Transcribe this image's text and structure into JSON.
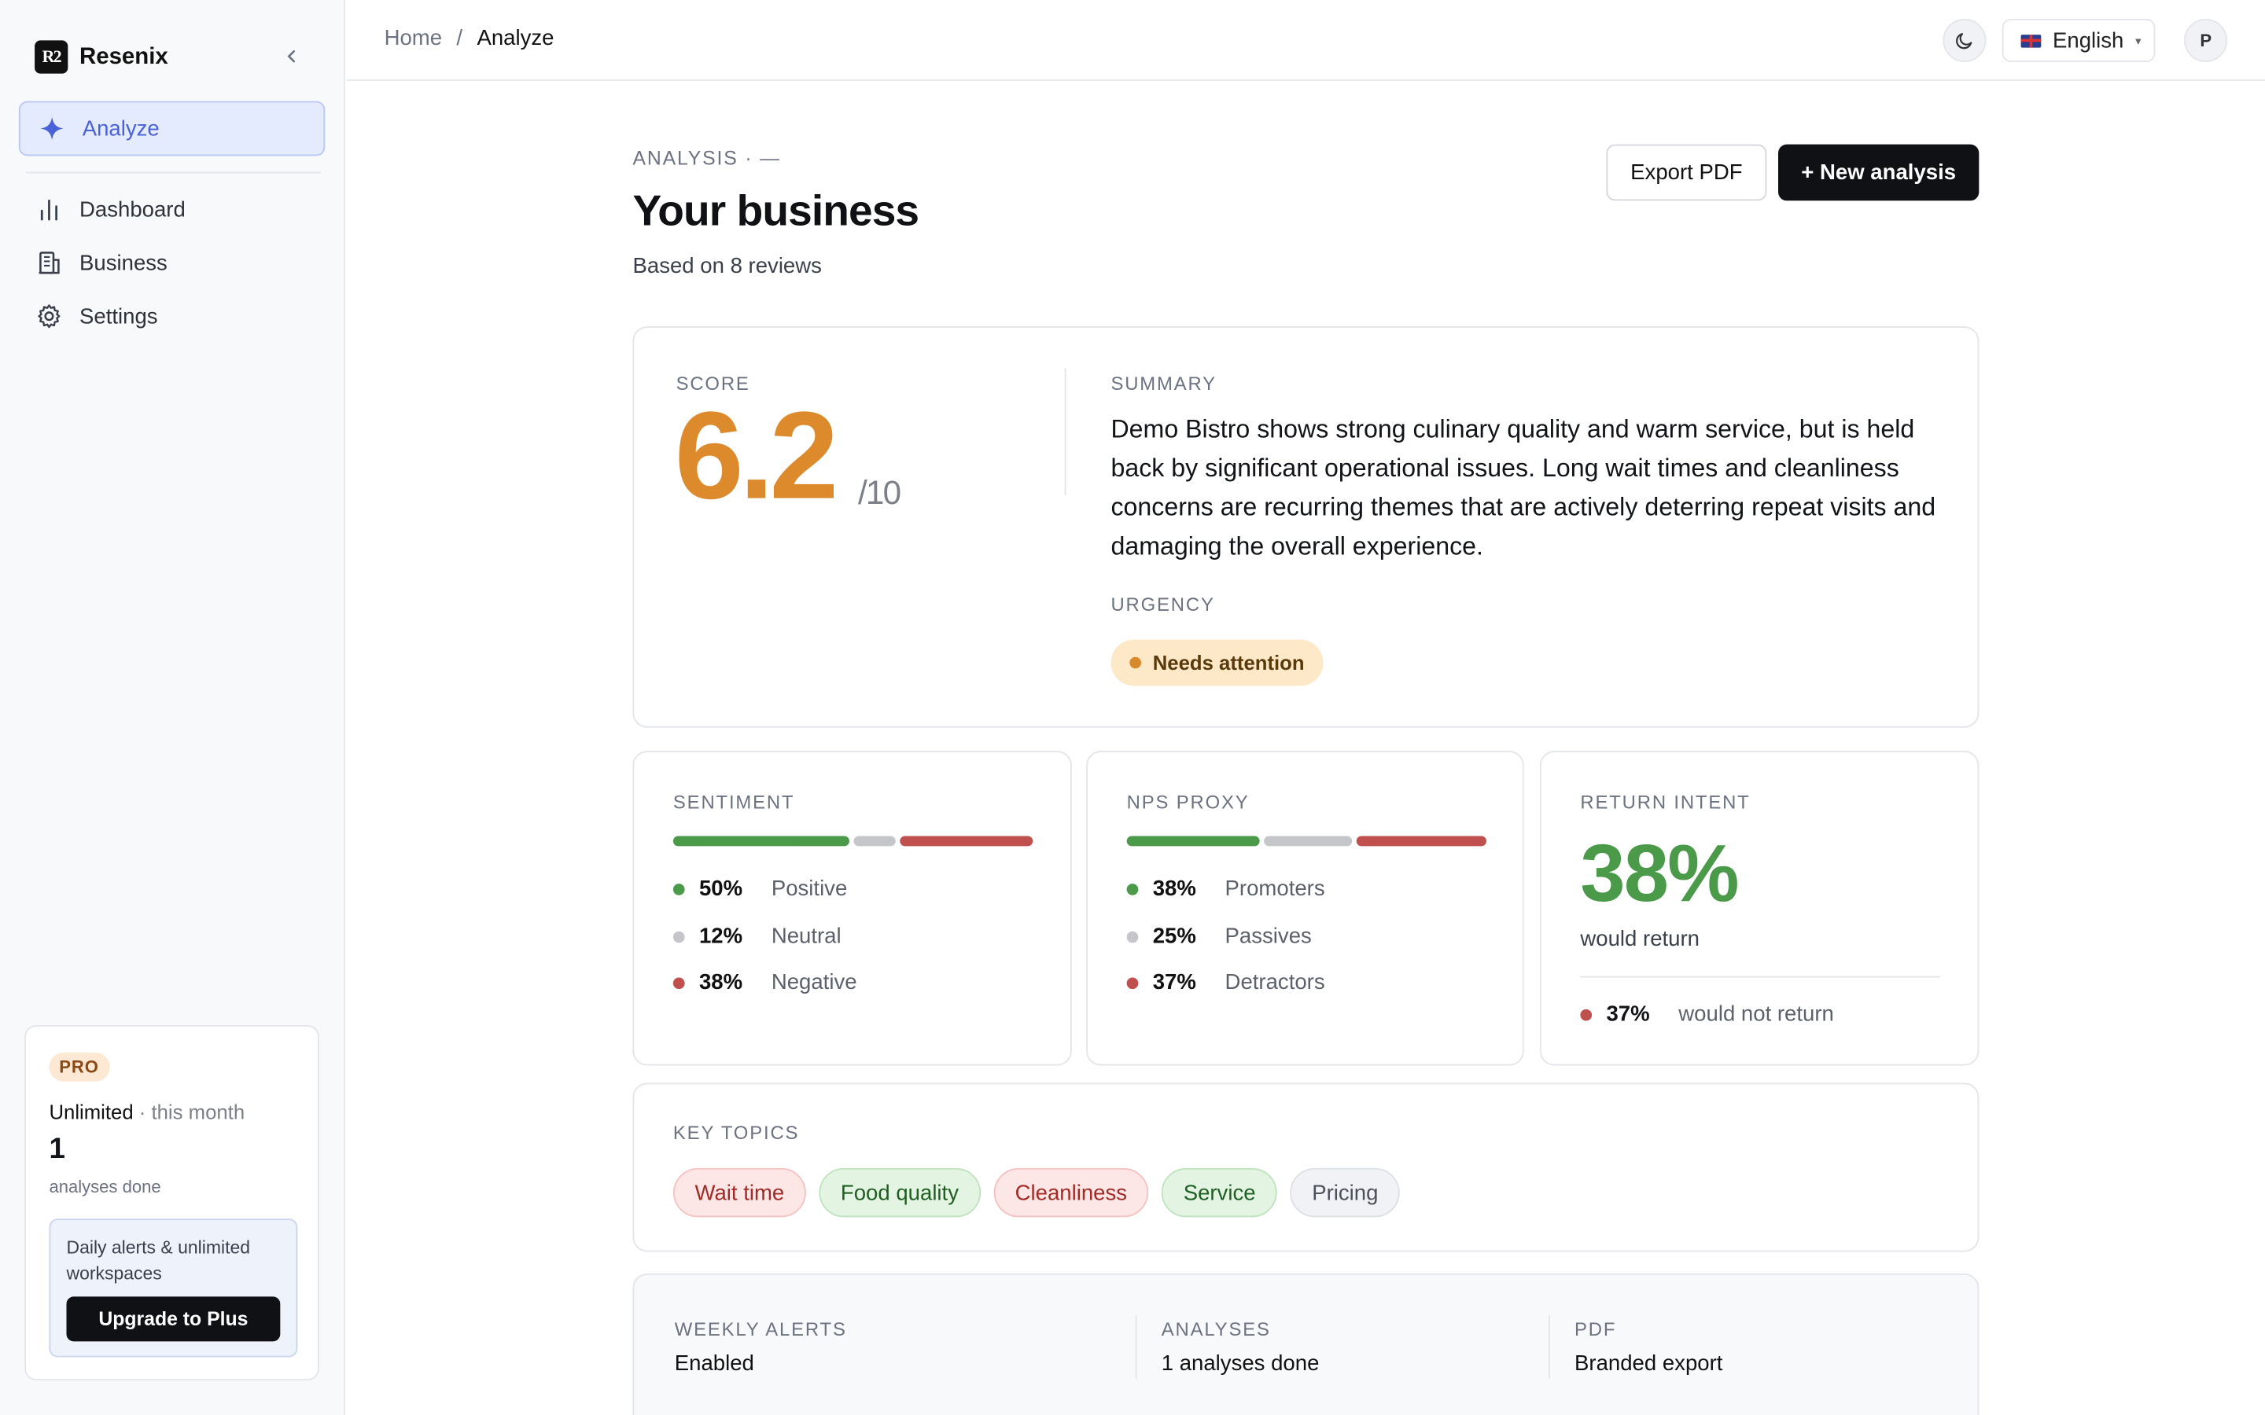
{
  "app": {
    "name": "Resenix",
    "logo_text": "R2"
  },
  "sidebar": {
    "active": {
      "label": "Analyze",
      "icon": "sparkle-icon"
    },
    "items": [
      {
        "label": "Dashboard",
        "icon": "bar-chart-icon"
      },
      {
        "label": "Business",
        "icon": "building-icon"
      },
      {
        "label": "Settings",
        "icon": "gear-icon"
      }
    ],
    "plan": {
      "badge": "PRO",
      "plan_name": "Unlimited",
      "period": " · this month",
      "count": "1",
      "count_label": "analyses done",
      "upsell_text": "Daily alerts & unlimited workspaces",
      "upgrade_label": "Upgrade to Plus"
    }
  },
  "topbar": {
    "breadcrumb": {
      "home": "Home",
      "sep": "/",
      "current": "Analyze"
    },
    "language": "English",
    "avatar_initial": "P"
  },
  "header": {
    "eyebrow": "ANALYSIS · —",
    "title": "Your business",
    "subtitle": "Based on 8 reviews",
    "export_label": "Export PDF",
    "new_label": "+ New analysis"
  },
  "overview": {
    "score_label": "SCORE",
    "score": "6.2",
    "score_denominator": "/10",
    "summary_label": "SUMMARY",
    "summary": "Demo Bistro shows strong culinary quality and warm service, but is held back by significant operational issues. Long wait times and cleanliness concerns are recurring themes that are actively deterring repeat visits and damaging the overall experience.",
    "urgency_label": "URGENCY",
    "urgency": "Needs attention"
  },
  "sentiment": {
    "label": "SENTIMENT",
    "rows": [
      {
        "pct": "50%",
        "name": "Positive",
        "value": 0.5,
        "color": "#4a9a4a"
      },
      {
        "pct": "12%",
        "name": "Neutral",
        "value": 0.12,
        "color": "#c4c6ca"
      },
      {
        "pct": "38%",
        "name": "Negative",
        "value": 0.38,
        "color": "#c0504d"
      }
    ]
  },
  "nps": {
    "label": "NPS PROXY",
    "rows": [
      {
        "pct": "38%",
        "name": "Promoters",
        "value": 0.38,
        "color": "#4a9a4a"
      },
      {
        "pct": "25%",
        "name": "Passives",
        "value": 0.25,
        "color": "#c4c6ca"
      },
      {
        "pct": "37%",
        "name": "Detractors",
        "value": 0.37,
        "color": "#c0504d"
      }
    ]
  },
  "return_intent": {
    "label": "RETURN INTENT",
    "value": "38%",
    "value_label": "would return",
    "negative_pct": "37%",
    "negative_label": "would not return"
  },
  "topics": {
    "label": "KEY TOPICS",
    "items": [
      {
        "label": "Wait time",
        "tone": "neg"
      },
      {
        "label": "Food quality",
        "tone": "pos"
      },
      {
        "label": "Cleanliness",
        "tone": "neg"
      },
      {
        "label": "Service",
        "tone": "pos"
      },
      {
        "label": "Pricing",
        "tone": "neu"
      }
    ]
  },
  "info": [
    {
      "label": "WEEKLY ALERTS",
      "value": "Enabled"
    },
    {
      "label": "ANALYSES",
      "value": "1 analyses done"
    },
    {
      "label": "PDF",
      "value": "Branded export"
    }
  ],
  "colors": {
    "accent": "#4a62d8",
    "score": "#dc8a2c",
    "positive": "#4a9a4a",
    "neutral": "#c4c6ca",
    "negative": "#c0504d"
  }
}
